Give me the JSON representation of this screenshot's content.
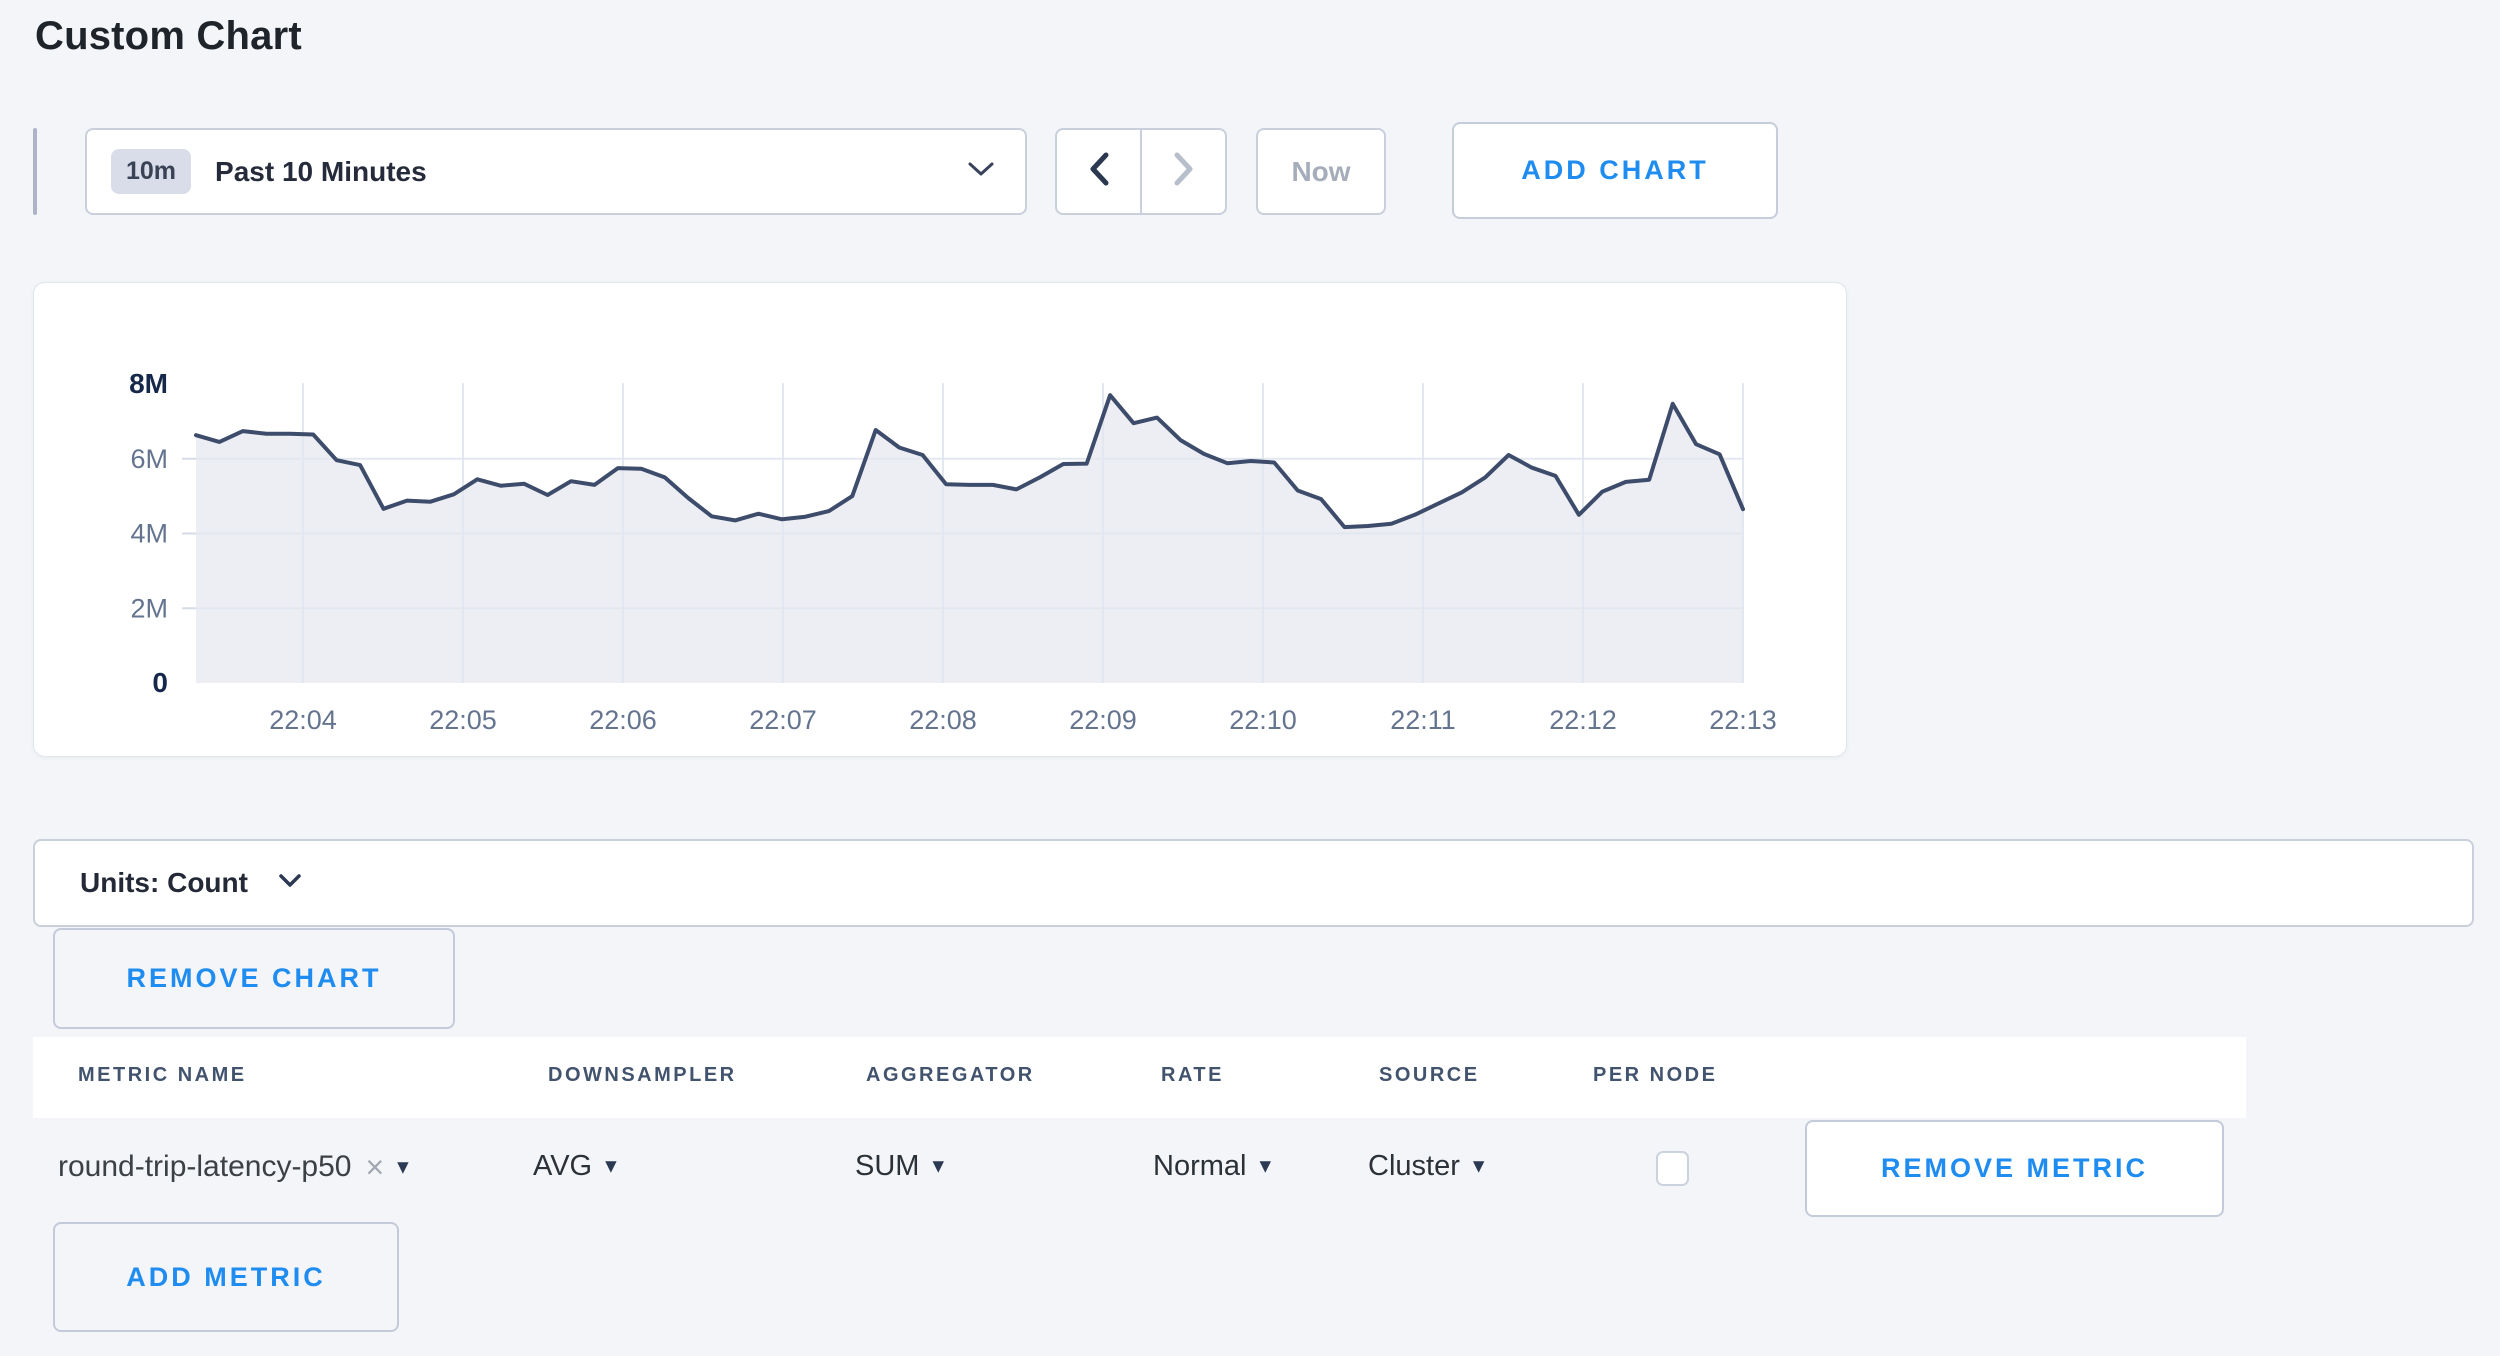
{
  "page": {
    "title": "Custom Chart",
    "background": "#f3f5f8",
    "accent_blue": "#1e8cf0"
  },
  "toolbar": {
    "time_range": {
      "badge": "10m",
      "label": "Past 10 Minutes"
    },
    "back_icon": "chevron-left",
    "forward_icon": "chevron-right",
    "now_label": "Now",
    "add_chart_label": "ADD CHART"
  },
  "chart_data": {
    "type": "area",
    "title": "",
    "xlabel": "",
    "ylabel": "",
    "unit": "Count",
    "value_scale": "millions",
    "ylim": [
      0,
      8
    ],
    "y_ticks": [
      {
        "label": "0",
        "value": 0,
        "bold": true
      },
      {
        "label": "2M",
        "value": 2,
        "bold": false
      },
      {
        "label": "4M",
        "value": 4,
        "bold": false
      },
      {
        "label": "6M",
        "value": 6,
        "bold": false
      },
      {
        "label": "8M",
        "value": 8,
        "bold": true
      }
    ],
    "x_ticks": [
      "22:04",
      "22:05",
      "22:06",
      "22:07",
      "22:08",
      "22:09",
      "22:10",
      "22:11",
      "22:12",
      "22:13"
    ],
    "grid": true,
    "legend": false,
    "line_color": "#3e4c6b",
    "fill_color": "rgba(223,227,237,0.6)",
    "grid_color": "#e3e7f0",
    "axis_minor_color": "#64748f",
    "axis_bold_color": "#16284a",
    "series": [
      {
        "name": "round-trip-latency-p50",
        "values": [
          6.63,
          6.45,
          6.74,
          6.67,
          6.67,
          6.65,
          5.96,
          5.83,
          4.66,
          4.88,
          4.85,
          5.05,
          5.45,
          5.28,
          5.33,
          5.03,
          5.4,
          5.3,
          5.75,
          5.73,
          5.5,
          4.95,
          4.46,
          4.35,
          4.53,
          4.38,
          4.45,
          4.6,
          5.0,
          6.77,
          6.3,
          6.1,
          5.32,
          5.3,
          5.3,
          5.18,
          5.5,
          5.86,
          5.87,
          7.7,
          6.95,
          7.1,
          6.5,
          6.13,
          5.88,
          5.94,
          5.9,
          5.15,
          4.92,
          4.17,
          4.2,
          4.26,
          4.5,
          4.8,
          5.1,
          5.5,
          6.1,
          5.76,
          5.54,
          4.5,
          5.12,
          5.38,
          5.44,
          7.47,
          6.39,
          6.12,
          4.65
        ]
      }
    ]
  },
  "units_bar": {
    "label": "Units: Count"
  },
  "chart_actions": {
    "remove_chart_label": "REMOVE CHART"
  },
  "metrics_table": {
    "columns": [
      {
        "label": "METRIC NAME"
      },
      {
        "label": "DOWNSAMPLER"
      },
      {
        "label": "AGGREGATOR"
      },
      {
        "label": "RATE"
      },
      {
        "label": "SOURCE"
      },
      {
        "label": "PER NODE"
      }
    ],
    "rows": [
      {
        "metric_name": "round-trip-latency-p50",
        "remove_tag": "×",
        "downsampler": "AVG",
        "aggregator": "SUM",
        "rate": "Normal",
        "source": "Cluster",
        "per_node_checked": false
      }
    ],
    "dropdown_arrow": "▾",
    "remove_metric_label": "REMOVE METRIC",
    "add_metric_label": "ADD METRIC"
  }
}
